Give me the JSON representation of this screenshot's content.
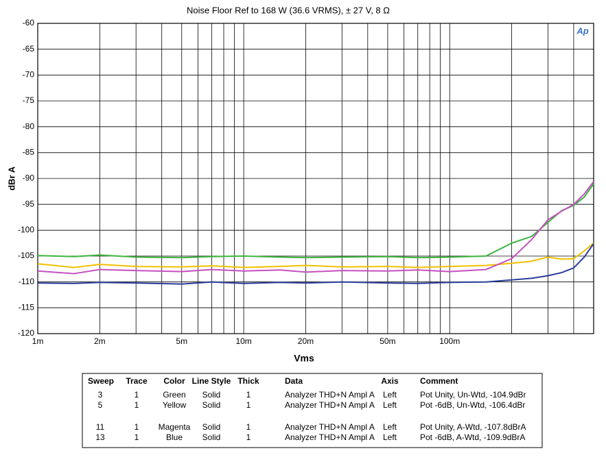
{
  "chart_data": {
    "type": "line",
    "title": "Noise Floor Ref to 168 W (36.6 VRMS), ± 27 V, 8 Ω",
    "x_label": "Vms",
    "y_label": "dBr A",
    "logo": "Ap",
    "x_log": true,
    "grid": true,
    "x": [
      0.001,
      0.0015,
      0.002,
      0.003,
      0.005,
      0.007,
      0.01,
      0.015,
      0.02,
      0.03,
      0.05,
      0.07,
      0.1,
      0.15,
      0.2,
      0.25,
      0.3,
      0.35,
      0.4,
      0.45,
      0.5
    ],
    "series": [
      {
        "name": "Green",
        "color": "#3db43d",
        "values": [
          -104.9,
          -105.1,
          -104.8,
          -105.2,
          -105.3,
          -105.1,
          -105.0,
          -105.2,
          -105.3,
          -105.2,
          -105.1,
          -105.3,
          -105.2,
          -105.0,
          -102.5,
          -101.2,
          -98.5,
          -96.2,
          -95.2,
          -93.6,
          -91.0
        ]
      },
      {
        "name": "Yellow",
        "color": "#f0c000",
        "values": [
          -106.5,
          -107.2,
          -106.6,
          -107.0,
          -107.1,
          -106.9,
          -107.2,
          -107.0,
          -106.8,
          -107.1,
          -107.0,
          -107.2,
          -107.0,
          -106.8,
          -106.4,
          -106.0,
          -105.2,
          -105.6,
          -105.5,
          -104.0,
          -102.5
        ]
      },
      {
        "name": "Magenta",
        "color": "#c650c0",
        "values": [
          -107.9,
          -108.4,
          -107.6,
          -107.8,
          -108.0,
          -107.6,
          -107.9,
          -107.7,
          -108.1,
          -107.8,
          -107.9,
          -107.7,
          -108.0,
          -107.6,
          -105.5,
          -101.8,
          -98.0,
          -96.3,
          -95.0,
          -93.0,
          -90.6
        ]
      },
      {
        "name": "Blue",
        "color": "#2a3c9c",
        "values": [
          -110.2,
          -110.3,
          -110.1,
          -110.2,
          -110.4,
          -110.0,
          -110.3,
          -110.1,
          -110.2,
          -110.0,
          -110.2,
          -110.3,
          -110.1,
          -110.0,
          -109.6,
          -109.3,
          -108.8,
          -108.2,
          -107.3,
          -105.2,
          -102.6
        ]
      }
    ],
    "xlim": [
      0.001,
      0.5
    ],
    "xticks": [
      {
        "value": 0.001,
        "label": "1m"
      },
      {
        "value": 0.002,
        "label": "2m"
      },
      {
        "value": 0.005,
        "label": "5m"
      },
      {
        "value": 0.01,
        "label": "10m"
      },
      {
        "value": 0.02,
        "label": "20m"
      },
      {
        "value": 0.05,
        "label": "50m"
      },
      {
        "value": 0.1,
        "label": "100m"
      }
    ],
    "x_minor_grid": [
      0.003,
      0.004,
      0.006,
      0.007,
      0.008,
      0.009,
      0.03,
      0.04,
      0.06,
      0.07,
      0.08,
      0.09,
      0.2,
      0.3,
      0.4
    ],
    "ylim": [
      -120,
      -60
    ],
    "yticks": [
      -60,
      -65,
      -70,
      -75,
      -80,
      -85,
      -90,
      -95,
      -100,
      -105,
      -110,
      -115,
      -120
    ]
  },
  "legend_table": {
    "columns": [
      "Sweep",
      "Trace",
      "Color",
      "Line Style",
      "Thick",
      "Data",
      "Axis",
      "Comment"
    ],
    "rows": [
      [
        "3",
        "1",
        "Green",
        "Solid",
        "1",
        "Analyzer THD+N Ampl A",
        "Left",
        "Pot Unity, Un-Wtd, -104.9dBr"
      ],
      [
        "5",
        "1",
        "Yellow",
        "Solid",
        "1",
        "Analyzer THD+N Ampl A",
        "Left",
        "Pot -6dB, Un-Wtd, -106.4dBr"
      ],
      [
        "11",
        "1",
        "Magenta",
        "Solid",
        "1",
        "Analyzer THD+N Ampl A",
        "Left",
        "Pot Unity, A-Wtd, -107.8dBrA"
      ],
      [
        "13",
        "1",
        "Blue",
        "Solid",
        "1",
        "Analyzer THD+N Ampl A",
        "Left",
        "Pot -6dB, A-Wtd, -109.9dBrA"
      ]
    ]
  }
}
